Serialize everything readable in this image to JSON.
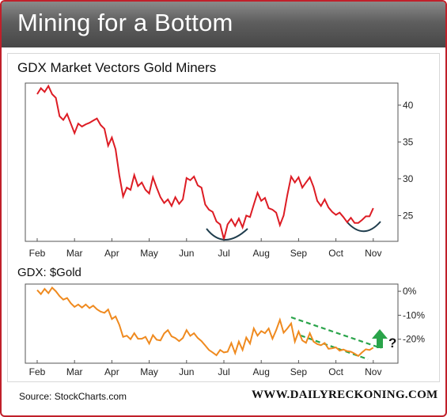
{
  "banner": {
    "title": "Mining for a Bottom"
  },
  "footer": {
    "source": "Source: StockCharts.com",
    "site": "WWW.DAILYRECKONING.COM"
  },
  "colors": {
    "frame": "#c0202a",
    "gdx_line": "#dd1c24",
    "ratio_line": "#ef8a1f",
    "trend_dash": "#2aa44a",
    "arrow": "#2aa44a",
    "arc": "#1f3d4d"
  },
  "chart_data": [
    {
      "type": "line",
      "title": "GDX Market Vectors Gold Miners",
      "categories": [
        "Feb",
        "Mar",
        "Apr",
        "May",
        "Jun",
        "Jul",
        "Aug",
        "Sep",
        "Oct",
        "Nov"
      ],
      "y_ticks": [
        "40",
        "35",
        "30",
        "25"
      ],
      "ylim": [
        21.5,
        43
      ],
      "y_axis_side": "right",
      "series": [
        {
          "x": [
            0,
            0.1,
            0.2,
            0.3,
            0.4,
            0.5,
            0.6,
            0.7,
            0.8,
            0.9,
            1,
            1.1,
            1.2,
            1.3,
            1.4,
            1.5,
            1.6,
            1.7,
            1.8,
            1.9,
            2,
            2.1,
            2.2,
            2.3,
            2.4,
            2.5,
            2.6,
            2.7,
            2.8,
            2.9,
            3,
            3.1,
            3.2,
            3.3,
            3.4,
            3.5,
            3.6,
            3.7,
            3.8,
            3.9,
            4,
            4.1,
            4.2,
            4.3,
            4.4,
            4.5,
            4.6,
            4.7,
            4.8,
            4.9,
            5,
            5.1,
            5.2,
            5.3,
            5.4,
            5.5,
            5.6,
            5.7,
            5.8,
            5.9,
            6,
            6.1,
            6.2,
            6.3,
            6.4,
            6.5,
            6.6,
            6.7,
            6.8,
            6.9,
            7,
            7.1,
            7.2,
            7.3,
            7.4,
            7.5,
            7.6,
            7.7,
            7.8,
            7.9,
            8,
            8.1,
            8.2,
            8.3,
            8.4,
            8.5,
            8.6,
            8.7,
            8.8,
            8.9,
            9
          ],
          "values": [
            41.5,
            42.3,
            41.8,
            42.6,
            41.5,
            41,
            38.5,
            38,
            38.8,
            37.5,
            36.2,
            37.5,
            37.1,
            37.4,
            37.6,
            37.9,
            38.2,
            37.3,
            36.8,
            34.5,
            35.6,
            34,
            30.5,
            27.6,
            28.8,
            28.5,
            30.5,
            29,
            29.5,
            28.5,
            28,
            30.2,
            28.8,
            27.5,
            26.7,
            27.2,
            26.3,
            27.5,
            26.6,
            27.2,
            30.1,
            29.8,
            30.3,
            29.1,
            28.8,
            26.5,
            25.8,
            25.5,
            24.2,
            23.8,
            21.8,
            23.8,
            24.5,
            23.6,
            24.6,
            23.4,
            25,
            24.8,
            26.5,
            28.1,
            27,
            27.4,
            26,
            25.8,
            25.4,
            23.7,
            25,
            27.8,
            30.3,
            29.5,
            30.2,
            28.8,
            29.5,
            30.2,
            28.9,
            27,
            26.3,
            27.2,
            26.1,
            25.5,
            25.1,
            25.4,
            24.8,
            24.1,
            24.7,
            24,
            24,
            24.4,
            24.9,
            24.9,
            26
          ]
        }
      ]
    },
    {
      "type": "line",
      "title": "GDX: $Gold",
      "categories": [
        "Feb",
        "Mar",
        "Apr",
        "May",
        "Jun",
        "Jul",
        "Aug",
        "Sep",
        "Oct",
        "Nov"
      ],
      "y_ticks": [
        "0%",
        "-10%",
        "-20%"
      ],
      "ylim": [
        -30,
        3
      ],
      "y_axis_side": "right",
      "series": [
        {
          "x": [
            0,
            0.1,
            0.2,
            0.3,
            0.4,
            0.5,
            0.6,
            0.7,
            0.8,
            0.9,
            1,
            1.1,
            1.2,
            1.3,
            1.4,
            1.5,
            1.6,
            1.7,
            1.8,
            1.9,
            2,
            2.1,
            2.2,
            2.3,
            2.4,
            2.5,
            2.6,
            2.7,
            2.8,
            2.9,
            3,
            3.1,
            3.2,
            3.3,
            3.4,
            3.5,
            3.6,
            3.7,
            3.8,
            3.9,
            4,
            4.1,
            4.2,
            4.3,
            4.4,
            4.5,
            4.6,
            4.7,
            4.8,
            4.9,
            5,
            5.1,
            5.2,
            5.3,
            5.4,
            5.5,
            5.6,
            5.7,
            5.8,
            5.9,
            6,
            6.1,
            6.2,
            6.3,
            6.4,
            6.5,
            6.6,
            6.7,
            6.8,
            6.9,
            7,
            7.1,
            7.2,
            7.3,
            7.4,
            7.5,
            7.6,
            7.7,
            7.8,
            7.9,
            8,
            8.1,
            8.2,
            8.3,
            8.4,
            8.5,
            8.6,
            8.7,
            8.8,
            8.9,
            9
          ],
          "values": [
            0.5,
            -1.2,
            1,
            -0.8,
            1.5,
            0,
            -2,
            -3.5,
            -2.8,
            -5,
            -6.5,
            -5.5,
            -6.8,
            -5.5,
            -7,
            -6,
            -7.5,
            -8.5,
            -9,
            -7.6,
            -11.6,
            -10.5,
            -14,
            -19,
            -18.5,
            -20,
            -17.5,
            -19.8,
            -19.8,
            -19,
            -21.8,
            -18.3,
            -20.2,
            -20.5,
            -17.6,
            -16.2,
            -18.8,
            -19.5,
            -20.8,
            -19.5,
            -16.2,
            -18.6,
            -17.5,
            -19.5,
            -20.8,
            -22.6,
            -24.5,
            -25.5,
            -26.7,
            -24.5,
            -25.5,
            -25.2,
            -21.6,
            -25.8,
            -21,
            -24.5,
            -19.3,
            -21.8,
            -15.5,
            -18.5,
            -16.6,
            -17.5,
            -15.5,
            -19.8,
            -16.2,
            -11.9,
            -17.3,
            -15.5,
            -13.4,
            -21,
            -16.8,
            -20.5,
            -21.5,
            -17.5,
            -21,
            -22,
            -22.5,
            -21.6,
            -24,
            -23.8,
            -23.4,
            -24.8,
            -24.3,
            -25,
            -25.2,
            -26,
            -27,
            -25.5,
            -24.2,
            -24.5,
            -23.5
          ]
        }
      ],
      "annotations": {
        "trend_channel": "dashed",
        "arrow": "up",
        "mark": "?"
      }
    }
  ]
}
